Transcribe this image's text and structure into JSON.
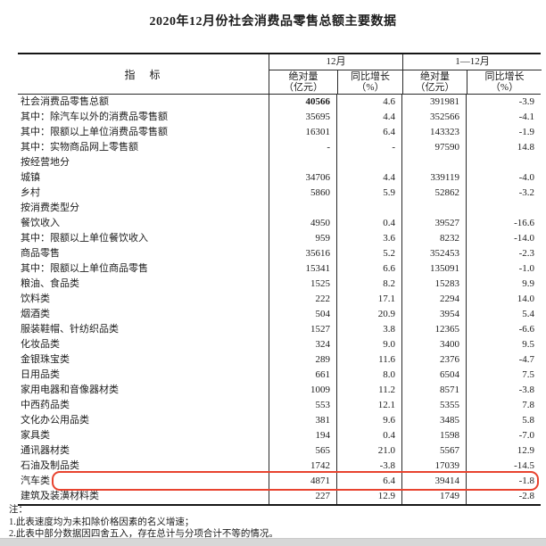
{
  "title": "2020年12月份社会消费品零售总额主要数据",
  "table": {
    "indicator_header": "指　标",
    "groups": [
      {
        "label": "12月",
        "sub": [
          {
            "line1": "绝对量",
            "line2": "（亿元）"
          },
          {
            "line1": "同比增长",
            "line2": "（%）"
          }
        ]
      },
      {
        "label": "1—12月",
        "sub": [
          {
            "line1": "绝对量",
            "line2": "（亿元）"
          },
          {
            "line1": "同比增长",
            "line2": "（%）"
          }
        ]
      }
    ],
    "rows": [
      {
        "label": "社会消费品零售总额",
        "indent": 0,
        "values": [
          "40566",
          "4.6",
          "391981",
          "-3.9"
        ],
        "bold_first": true,
        "highlighted": false
      },
      {
        "label": "其中：除汽车以外的消费品零售额",
        "indent": 1,
        "values": [
          "35695",
          "4.4",
          "352566",
          "-4.1"
        ],
        "bold_first": false,
        "highlighted": false
      },
      {
        "label": "其中：限额以上单位消费品零售额",
        "indent": 1,
        "values": [
          "16301",
          "6.4",
          "143323",
          "-1.9"
        ],
        "bold_first": false,
        "highlighted": false
      },
      {
        "label": "其中：实物商品网上零售额",
        "indent": 1,
        "values": [
          "-",
          "-",
          "97590",
          "14.8"
        ],
        "bold_first": false,
        "highlighted": false
      },
      {
        "label": "按经营地分",
        "indent": 0,
        "values": [
          "",
          "",
          "",
          ""
        ],
        "bold_first": false,
        "highlighted": false
      },
      {
        "label": "城镇",
        "indent": 1,
        "values": [
          "34706",
          "4.4",
          "339119",
          "-4.0"
        ],
        "bold_first": false,
        "highlighted": false
      },
      {
        "label": "乡村",
        "indent": 1,
        "values": [
          "5860",
          "5.9",
          "52862",
          "-3.2"
        ],
        "bold_first": false,
        "highlighted": false
      },
      {
        "label": "按消费类型分",
        "indent": 0,
        "values": [
          "",
          "",
          "",
          ""
        ],
        "bold_first": false,
        "highlighted": false
      },
      {
        "label": "餐饮收入",
        "indent": 1,
        "values": [
          "4950",
          "0.4",
          "39527",
          "-16.6"
        ],
        "bold_first": false,
        "highlighted": false
      },
      {
        "label": "其中：限额以上单位餐饮收入",
        "indent": 2,
        "values": [
          "959",
          "3.6",
          "8232",
          "-14.0"
        ],
        "bold_first": false,
        "highlighted": false
      },
      {
        "label": "商品零售",
        "indent": 1,
        "values": [
          "35616",
          "5.2",
          "352453",
          "-2.3"
        ],
        "bold_first": false,
        "highlighted": false
      },
      {
        "label": "其中：限额以上单位商品零售",
        "indent": 2,
        "values": [
          "15341",
          "6.6",
          "135091",
          "-1.0"
        ],
        "bold_first": false,
        "highlighted": false
      },
      {
        "label": "粮油、食品类",
        "indent": 3,
        "values": [
          "1525",
          "8.2",
          "15283",
          "9.9"
        ],
        "bold_first": false,
        "highlighted": false
      },
      {
        "label": "饮料类",
        "indent": 3,
        "values": [
          "222",
          "17.1",
          "2294",
          "14.0"
        ],
        "bold_first": false,
        "highlighted": false
      },
      {
        "label": "烟酒类",
        "indent": 3,
        "values": [
          "504",
          "20.9",
          "3954",
          "5.4"
        ],
        "bold_first": false,
        "highlighted": false
      },
      {
        "label": "服装鞋帽、针纺织品类",
        "indent": 3,
        "values": [
          "1527",
          "3.8",
          "12365",
          "-6.6"
        ],
        "bold_first": false,
        "highlighted": false
      },
      {
        "label": "化妆品类",
        "indent": 3,
        "values": [
          "324",
          "9.0",
          "3400",
          "9.5"
        ],
        "bold_first": false,
        "highlighted": false
      },
      {
        "label": "金银珠宝类",
        "indent": 3,
        "values": [
          "289",
          "11.6",
          "2376",
          "-4.7"
        ],
        "bold_first": false,
        "highlighted": false
      },
      {
        "label": "日用品类",
        "indent": 3,
        "values": [
          "661",
          "8.0",
          "6504",
          "7.5"
        ],
        "bold_first": false,
        "highlighted": false
      },
      {
        "label": "家用电器和音像器材类",
        "indent": 3,
        "values": [
          "1009",
          "11.2",
          "8571",
          "-3.8"
        ],
        "bold_first": false,
        "highlighted": false
      },
      {
        "label": "中西药品类",
        "indent": 3,
        "values": [
          "553",
          "12.1",
          "5355",
          "7.8"
        ],
        "bold_first": false,
        "highlighted": false
      },
      {
        "label": "文化办公用品类",
        "indent": 3,
        "values": [
          "381",
          "9.6",
          "3485",
          "5.8"
        ],
        "bold_first": false,
        "highlighted": false
      },
      {
        "label": "家具类",
        "indent": 3,
        "values": [
          "194",
          "0.4",
          "1598",
          "-7.0"
        ],
        "bold_first": false,
        "highlighted": false
      },
      {
        "label": "通讯器材类",
        "indent": 3,
        "values": [
          "565",
          "21.0",
          "5567",
          "12.9"
        ],
        "bold_first": false,
        "highlighted": false
      },
      {
        "label": "石油及制品类",
        "indent": 3,
        "values": [
          "1742",
          "-3.8",
          "17039",
          "-14.5"
        ],
        "bold_first": false,
        "highlighted": false
      },
      {
        "label": "汽车类",
        "indent": 3,
        "values": [
          "4871",
          "6.4",
          "39414",
          "-1.8"
        ],
        "bold_first": false,
        "highlighted": true
      },
      {
        "label": "建筑及装潢材料类",
        "indent": 3,
        "values": [
          "227",
          "12.9",
          "1749",
          "-2.8"
        ],
        "bold_first": false,
        "highlighted": false
      }
    ]
  },
  "highlight": {
    "color": "#e8432f",
    "highlighted_row": "汽车类"
  },
  "notes": {
    "heading": "注：",
    "items": [
      "1.此表速度均为未扣除价格因素的名义增速；",
      "2.此表中部分数据因四舍五入，存在总计与分项合计不等的情况。"
    ]
  }
}
